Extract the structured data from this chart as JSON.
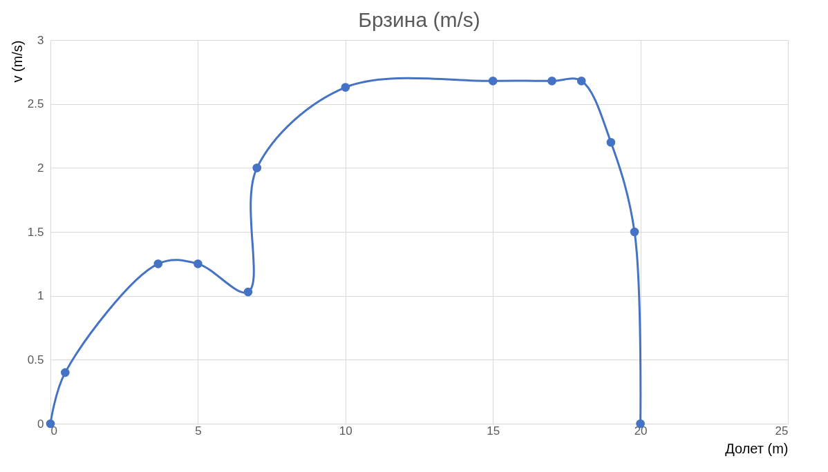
{
  "chart_data": {
    "type": "line",
    "title": "Брзина (m/s)",
    "xlabel": "Долет (m)",
    "ylabel": "v (m/s)",
    "x": [
      0,
      0.5,
      3.65,
      5,
      6.7,
      7,
      10,
      15,
      17,
      18,
      19,
      19.8,
      20
    ],
    "series": [
      {
        "color": "#4472c4",
        "values": [
          0,
          0.4,
          1.25,
          1.25,
          1.03,
          2,
          2.63,
          2.68,
          2.68,
          2.68,
          2.2,
          1.5,
          0
        ]
      }
    ],
    "xlim": [
      0,
      25
    ],
    "xticks": [
      0,
      5,
      10,
      15,
      20,
      25
    ],
    "ylim": [
      0,
      3
    ],
    "yticks": [
      0,
      0.5,
      1,
      1.5,
      2,
      2.5,
      3
    ],
    "grid": true,
    "marker": "circle",
    "line_style": "solid"
  }
}
